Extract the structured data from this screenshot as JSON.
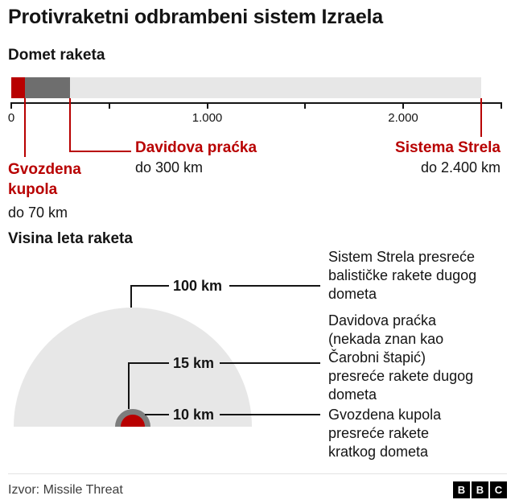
{
  "page": {
    "title": "Protivraketni odbrambeni sistem Izraela",
    "footer": {
      "source": "Izvor: Missile Threat",
      "bbc_logo": [
        "B",
        "B",
        "C"
      ]
    }
  },
  "colors": {
    "red": "#b80000",
    "dark_gray": "#6e6e6e",
    "mid_gray": "#7d7d7d",
    "light_gray": "#e7e7e7",
    "text": "#141414"
  },
  "range_chart": {
    "title": "Domet raketa",
    "axis": {
      "ticks": [
        {
          "km": 0,
          "label": "0"
        },
        {
          "km": 500,
          "label": ""
        },
        {
          "km": 1000,
          "label": "1.000"
        },
        {
          "km": 1500,
          "label": ""
        },
        {
          "km": 2000,
          "label": "2.000"
        },
        {
          "km": 2500,
          "label": ""
        }
      ]
    },
    "systems": [
      {
        "id": "arrow",
        "name": "Sistema Strela",
        "range_label": "do 2.400 km",
        "range_km": 2400,
        "color": "#e7e7e7"
      },
      {
        "id": "sling",
        "name": "Davidova praćka",
        "range_label": "do 300 km",
        "range_km": 300,
        "color": "#6e6e6e"
      },
      {
        "id": "iron",
        "name": "Gvozdena kupola",
        "range_label": "do 70 km",
        "range_km": 70,
        "color": "#b80000"
      }
    ]
  },
  "altitude_chart": {
    "title": "Visina leta raketa",
    "domes": [
      {
        "id": "arrow",
        "label": "100 km",
        "altitude_km": 100,
        "color": "#e7e7e7"
      },
      {
        "id": "sling",
        "label": "15 km",
        "altitude_km": 15,
        "color": "#7d7d7d"
      },
      {
        "id": "iron",
        "label": "10 km",
        "altitude_km": 10,
        "color": "#b80000"
      }
    ],
    "descriptions": [
      {
        "lines": [
          "Sistem Strela presreće",
          "balističke rakete dugog",
          "dometa"
        ]
      },
      {
        "lines": [
          "Davidova praćka",
          "(nekada znan kao",
          "Čarobni štapić)",
          "presreće rakete dugog",
          "dometa"
        ]
      },
      {
        "lines": [
          "Gvozdena kupola",
          "presreće rakete",
          "kratkog dometa"
        ]
      }
    ]
  },
  "chart_data": [
    {
      "type": "bar",
      "orientation": "horizontal",
      "title": "Domet raketa",
      "categories": [
        "Gvozdena kupola",
        "Davidova praćka",
        "Sistema Strela"
      ],
      "values": [
        70,
        300,
        2400
      ],
      "unit": "km",
      "annotations": [
        "do 70 km",
        "do 300 km",
        "do 2.400 km"
      ],
      "xlabel": "",
      "ylabel": "",
      "xlim": [
        0,
        2500
      ],
      "tick_labels": [
        "0",
        "1.000",
        "2.000"
      ],
      "grid": false,
      "legend": false
    },
    {
      "type": "area",
      "title": "Visina leta raketa",
      "categories": [
        "Gvozdena kupola",
        "Davidova praćka",
        "Sistem Strela"
      ],
      "values": [
        10,
        15,
        100
      ],
      "unit": "km",
      "annotations": [
        "Gvozdena kupola presreće rakete kratkog dometa",
        "Davidova praćka (nekada znan kao Čarobni štapić) presreće rakete dugog dometa",
        "Sistem Strela presreće balističke rakete dugog dometa"
      ],
      "legend": false
    }
  ]
}
